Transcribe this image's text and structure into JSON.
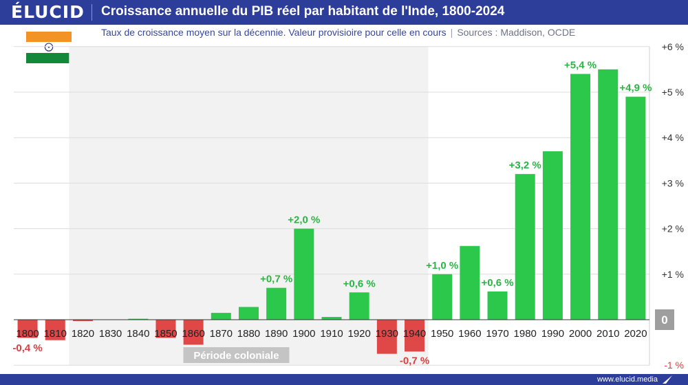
{
  "header": {
    "brand": "ÉLUCID",
    "title": "Croissance annuelle du PIB réel par habitant de l'Inde, 1800-2024"
  },
  "subtitle": {
    "text": "Taux de croissance moyen sur la décennie. Valeur provisioire pour celle en cours",
    "separator": "|",
    "sources": "Sources : Maddison, OCDE"
  },
  "footer": {
    "url": "www.elucid.media"
  },
  "flag": {
    "colors": [
      "#f39325",
      "#ffffff",
      "#13883b"
    ],
    "chakra": "#1f2a7a"
  },
  "colors": {
    "positive": "#2cc84b",
    "negative": "#e04848",
    "label_positive": "#2bb544",
    "label_negative": "#d84040",
    "shade": "#f2f2f2",
    "zero_badge": "#9e9e9e",
    "header": "#2d3e9a"
  },
  "chart_data": {
    "type": "bar",
    "categories": [
      "1800",
      "1810",
      "1820",
      "1830",
      "1840",
      "1850",
      "1860",
      "1870",
      "1880",
      "1890",
      "1900",
      "1910",
      "1920",
      "1930",
      "1940",
      "1950",
      "1960",
      "1970",
      "1980",
      "1990",
      "2000",
      "2010",
      "2020"
    ],
    "values": [
      -0.4,
      -0.45,
      -0.03,
      0.0,
      0.02,
      -0.4,
      -0.55,
      0.15,
      0.28,
      0.7,
      2.0,
      0.06,
      0.6,
      -0.75,
      -0.7,
      1.0,
      1.62,
      0.62,
      3.2,
      3.7,
      5.4,
      5.5,
      4.9
    ],
    "data_labels": [
      {
        "index": 0,
        "text": "-0,4 %"
      },
      {
        "index": 9,
        "text": "+0,7 %"
      },
      {
        "index": 10,
        "text": "+2,0 %"
      },
      {
        "index": 12,
        "text": "+0,6 %"
      },
      {
        "index": 14,
        "text": "-0,7 %"
      },
      {
        "index": 15,
        "text": "+1,0 %"
      },
      {
        "index": 17,
        "text": "+0,6 %"
      },
      {
        "index": 18,
        "text": "+3,2 %"
      },
      {
        "index": 20,
        "text": "+5,4 %"
      },
      {
        "index": 22,
        "text": "+4,9 %"
      }
    ],
    "ylim": [
      -1,
      6
    ],
    "y_ticks": [
      {
        "value": 6,
        "label": "+6 %"
      },
      {
        "value": 5,
        "label": "+5 %"
      },
      {
        "value": 4,
        "label": "+4 %"
      },
      {
        "value": 3,
        "label": "+3 %"
      },
      {
        "value": 2,
        "label": "+2 %"
      },
      {
        "value": 1,
        "label": "+1 %"
      },
      {
        "value": 0,
        "label": "0"
      },
      {
        "value": -1,
        "label": "-1 %"
      }
    ],
    "y_axis_position": "right",
    "grid": true,
    "annotation": {
      "text": "Période coloniale",
      "from_category": "1820",
      "to_category": "1940"
    }
  }
}
